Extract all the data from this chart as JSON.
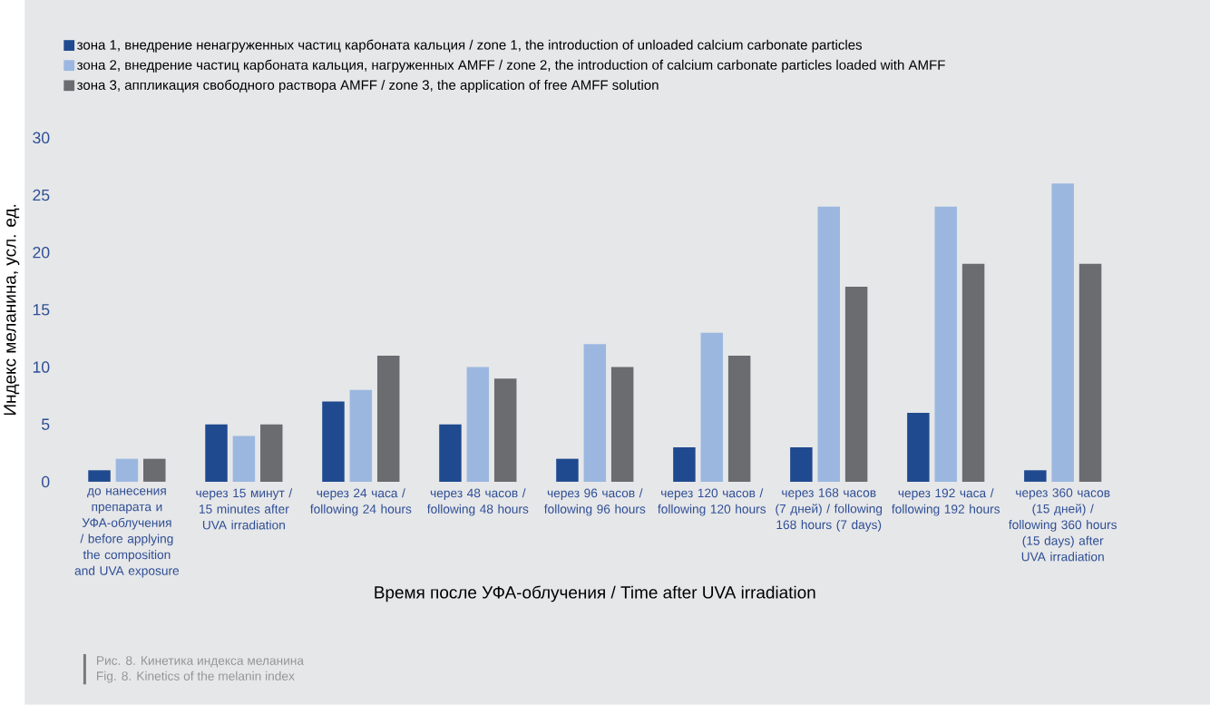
{
  "chart_data": {
    "type": "bar",
    "xlabel": "Время после УФА-облучения / Time after UVA irradiation",
    "ylabel": "Индекс меланина, усл. ед.",
    "categories": [
      "до нанесения препарата и УФА-облучения / before applying the composition and UVA exposure",
      "через 15 минут / 15 minutes after UVA irradiation",
      "через 24 часа / following 24 hours",
      "через 48 часов / following 48 hours",
      "через 96 часов / following 96 hours",
      "через 120 часов / following 120 hours",
      "через 168 часов (7 дней) / following 168 hours (7 days)",
      "через 192 часа / following 192 hours",
      "через 360 часов (15 дней) / following 360 hours (15 days) after UVA irradiation"
    ],
    "series": [
      {
        "name": "зона 1, внедрение ненагруженных частиц карбоната кальция / zone 1, the introduction of unloaded calcium carbonate particles",
        "color": "#1f4a8f",
        "values": [
          1,
          5,
          7,
          5,
          2,
          3,
          3,
          6,
          1
        ]
      },
      {
        "name": "зона 2, внедрение частиц карбоната кальция, нагруженных AMFF / zone 2, the introduction of calcium carbonate particles loaded with AMFF",
        "color": "#9bb7e0",
        "values": [
          2,
          4,
          8,
          10,
          12,
          13,
          24,
          24,
          26
        ]
      },
      {
        "name": "зона 3, аппликация свободного раствора AMFF / zone 3, the application of free AMFF solution",
        "color": "#6b6c70",
        "values": [
          2,
          5,
          11,
          9,
          10,
          11,
          17,
          19,
          19
        ]
      }
    ],
    "ylim": [
      0,
      30
    ],
    "yticks": [
      0,
      5,
      10,
      15,
      20,
      25,
      30
    ],
    "legend": "top left",
    "annotations": [
      "Рис. 8. Кинетика индекса меланина",
      "Fig. 8. Kinetics of the melanin index"
    ]
  }
}
